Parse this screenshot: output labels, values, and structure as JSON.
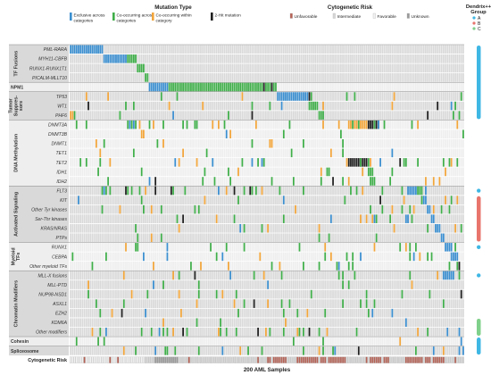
{
  "chart_data": {
    "type": "heatmap",
    "xlabel": "200 AML Samples",
    "n_samples": 200,
    "legend_mutation": {
      "title": "Mutation Type",
      "items": [
        {
          "label": "Exclusive across categories",
          "color": "#3b8fd0"
        },
        {
          "label": "Co-occurring across categories",
          "color": "#3fae49"
        },
        {
          "label": "Co-occurring within category",
          "color": "#f2a53a"
        },
        {
          "label": "2-Hit mutation",
          "color": "#1f1f1f"
        }
      ]
    },
    "legend_risk": {
      "title": "Cytogenetic Risk",
      "items": [
        {
          "label": "Unfavorable",
          "color": "#b86255"
        },
        {
          "label": "Intermediate",
          "color": "#d8d8d8"
        },
        {
          "label": "Favorable",
          "color": "#f2f2f2"
        },
        {
          "label": "Unknown",
          "color": "#9a9a9a"
        }
      ]
    },
    "legend_group": {
      "title": "Dendrix++ Group",
      "items": [
        {
          "label": "A",
          "color": "#3fb7e4"
        },
        {
          "label": "B",
          "color": "#e8746c"
        },
        {
          "label": "C",
          "color": "#7fd08a"
        }
      ]
    },
    "categories": [
      {
        "name": "TF Fusions",
        "genes": [
          "PML-RARA",
          "MYH11-CBFB",
          "RUNX1-RUNX1T1",
          "PICALM-MLLT10"
        ]
      },
      {
        "name": "NPM1",
        "genes": [
          "NPM1"
        ]
      },
      {
        "name": "Tumor Suppres-sors",
        "genes": [
          "TP53",
          "WT1",
          "PHF6"
        ]
      },
      {
        "name": "DNA Methylation",
        "genes": [
          "DNMT3A",
          "DNMT3B",
          "DNMT1",
          "TET1",
          "TET2",
          "IDH1",
          "IDH2"
        ]
      },
      {
        "name": "Activated Signaling",
        "genes": [
          "FLT3",
          "KIT",
          "Other Tyr kinases",
          "Ser-Thr kinases",
          "KRAS/NRAS",
          "PTPs"
        ]
      },
      {
        "name": "Myeloid TFs",
        "genes": [
          "RUNX1",
          "CEBPA",
          "Other myeloid TFs"
        ]
      },
      {
        "name": "Chromatin Modifiers",
        "genes": [
          "MLL-X fusions",
          "MLL-PTD",
          "NUP98-NSD1",
          "ASXL1",
          "EZH2",
          "KDM6A",
          "Other modifiers"
        ]
      },
      {
        "name": "Cohesin",
        "genes": [
          "Cohesin"
        ]
      },
      {
        "name": "Spliceosome",
        "genes": [
          "Spliceosome"
        ]
      }
    ],
    "bottom_row_label": "Cytogenetic Risk",
    "rows": [
      {
        "gene": "PML-RARA",
        "blocks": [
          [
            0,
            17,
            "exclusive"
          ]
        ]
      },
      {
        "gene": "MYH11-CBFB",
        "blocks": [
          [
            17,
            12,
            "exclusive"
          ],
          [
            29,
            5,
            "co_across"
          ]
        ]
      },
      {
        "gene": "RUNX1-RUNX1T1",
        "blocks": [
          [
            34,
            4,
            "co_across"
          ]
        ]
      },
      {
        "gene": "PICALM-MLLT10",
        "blocks": [
          [
            38,
            2,
            "co_across"
          ]
        ]
      },
      {
        "gene": "NPM1",
        "blocks": [
          [
            40,
            10,
            "exclusive"
          ],
          [
            50,
            55,
            "co_across"
          ]
        ]
      },
      {
        "gene": "TP53",
        "blocks": [
          [
            105,
            16,
            "exclusive"
          ],
          [
            121,
            1,
            "two_hit"
          ]
        ]
      },
      {
        "gene": "WT1",
        "blocks": [
          [
            121,
            5,
            "co_across"
          ]
        ]
      },
      {
        "gene": "PHF6",
        "blocks": [
          [
            126,
            3,
            "co_across"
          ]
        ]
      },
      {
        "gene": "DNMT3A",
        "blocks": [
          [
            141,
            10,
            "co_within"
          ],
          [
            151,
            6,
            "two_hit"
          ]
        ]
      },
      {
        "gene": "DNMT3B",
        "blocks": [
          [
            137,
            1,
            "co_across"
          ]
        ]
      },
      {
        "gene": "DNMT1",
        "blocks": [
          [
            138,
            1,
            "co_across"
          ]
        ]
      },
      {
        "gene": "TET1",
        "blocks": [
          [
            138,
            1,
            "co_across"
          ]
        ]
      },
      {
        "gene": "TET2",
        "blocks": [
          [
            141,
            10,
            "two_hit"
          ],
          [
            151,
            1,
            "co_across"
          ]
        ]
      },
      {
        "gene": "IDH1",
        "blocks": [
          [
            151,
            3,
            "co_across"
          ]
        ]
      },
      {
        "gene": "IDH2",
        "blocks": [
          [
            152,
            3,
            "co_across"
          ]
        ]
      },
      {
        "gene": "FLT3",
        "blocks": [
          [
            171,
            5,
            "exclusive"
          ],
          [
            176,
            3,
            "co_across"
          ]
        ]
      },
      {
        "gene": "KIT",
        "blocks": [
          [
            179,
            2,
            "exclusive"
          ]
        ]
      },
      {
        "gene": "Other Tyr kinases",
        "blocks": [
          [
            181,
            2,
            "exclusive"
          ]
        ]
      },
      {
        "gene": "Ser-Thr kinases",
        "blocks": [
          [
            183,
            2,
            "exclusive"
          ]
        ]
      },
      {
        "gene": "KRAS/NRAS",
        "blocks": [
          [
            185,
            3,
            "exclusive"
          ]
        ]
      },
      {
        "gene": "PTPs",
        "blocks": [
          [
            188,
            2,
            "exclusive"
          ]
        ]
      },
      {
        "gene": "RUNX1",
        "blocks": [
          [
            190,
            4,
            "exclusive"
          ]
        ]
      },
      {
        "gene": "CEBPA",
        "blocks": [
          [
            193,
            4,
            "exclusive"
          ]
        ]
      },
      {
        "gene": "Other myeloid TFs",
        "blocks": [
          [
            196,
            2,
            "co_across"
          ]
        ]
      },
      {
        "gene": "MLL-X fusions",
        "blocks": [
          [
            189,
            6,
            "exclusive"
          ]
        ]
      },
      {
        "gene": "MLL-PTD",
        "blocks": []
      },
      {
        "gene": "NUP98-NSD1",
        "blocks": []
      },
      {
        "gene": "ASXL1",
        "blocks": []
      },
      {
        "gene": "EZH2",
        "blocks": []
      },
      {
        "gene": "KDM6A",
        "blocks": []
      },
      {
        "gene": "Other modifiers",
        "blocks": [
          [
            197,
            1,
            "exclusive"
          ]
        ]
      },
      {
        "gene": "Cohesin",
        "blocks": [
          [
            198,
            1,
            "exclusive"
          ]
        ]
      },
      {
        "gene": "Spliceosome",
        "blocks": [
          [
            199,
            1,
            "exclusive"
          ]
        ]
      }
    ],
    "scatter_density": [
      0,
      0,
      0,
      0,
      0,
      0.06,
      0.05,
      0.05,
      0.12,
      0.03,
      0.03,
      0.03,
      0.1,
      0.08,
      0.08,
      0.15,
      0.08,
      0.07,
      0.07,
      0.07,
      0.05,
      0.08,
      0.07,
      0.05,
      0.05,
      0.05,
      0.05,
      0.06,
      0.04,
      0.03,
      0.1,
      0.06,
      0.06
    ],
    "cytogenetic_risk_runs": [
      [
        0,
        38,
        "favorable"
      ],
      [
        38,
        5,
        "intermediate"
      ],
      [
        43,
        12,
        "unknown"
      ],
      [
        55,
        45,
        "intermediate"
      ],
      [
        100,
        10,
        "unfavorable"
      ],
      [
        110,
        5,
        "intermediate"
      ],
      [
        115,
        25,
        "unfavorable"
      ],
      [
        140,
        10,
        "intermediate"
      ],
      [
        150,
        12,
        "unfavorable"
      ],
      [
        162,
        8,
        "intermediate"
      ],
      [
        170,
        20,
        "unfavorable"
      ],
      [
        190,
        10,
        "intermediate"
      ]
    ],
    "dendrix_groups": [
      {
        "group": "A",
        "row_start": 0,
        "row_end": 8
      },
      {
        "group": "A",
        "row_start": 15,
        "row_end": 16
      },
      {
        "group": "B",
        "row_start": 16,
        "row_end": 21
      },
      {
        "group": "A",
        "row_start": 21,
        "row_end": 22
      },
      {
        "group": "A",
        "row_start": 24,
        "row_end": 25
      },
      {
        "group": "C",
        "row_start": 29,
        "row_end": 31
      },
      {
        "group": "A",
        "row_start": 31,
        "row_end": 33
      }
    ]
  }
}
